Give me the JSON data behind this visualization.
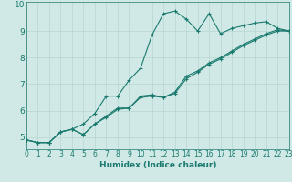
{
  "xlabel": "Humidex (Indice chaleur)",
  "x": [
    0,
    1,
    2,
    3,
    4,
    5,
    6,
    7,
    8,
    9,
    10,
    11,
    12,
    13,
    14,
    15,
    16,
    17,
    18,
    19,
    20,
    21,
    22,
    23
  ],
  "line1": [
    4.9,
    4.8,
    4.8,
    5.2,
    5.3,
    5.1,
    5.5,
    5.8,
    6.1,
    6.1,
    6.55,
    6.6,
    6.5,
    6.7,
    7.3,
    7.5,
    7.8,
    8.0,
    8.25,
    8.5,
    8.7,
    8.9,
    9.05,
    9.0
  ],
  "line2": [
    4.9,
    4.8,
    4.8,
    5.2,
    5.3,
    5.5,
    5.9,
    6.55,
    6.55,
    7.15,
    7.6,
    8.85,
    9.65,
    9.75,
    9.45,
    9.0,
    9.65,
    8.9,
    9.1,
    9.2,
    9.3,
    9.35,
    9.1,
    9.0
  ],
  "line3": [
    4.9,
    4.8,
    4.8,
    5.2,
    5.3,
    5.1,
    5.5,
    5.75,
    6.05,
    6.1,
    6.5,
    6.55,
    6.5,
    6.65,
    7.2,
    7.45,
    7.75,
    7.95,
    8.2,
    8.45,
    8.65,
    8.85,
    9.0,
    9.0
  ],
  "line_color": "#1a7a6e",
  "bg_color": "#d0e9e6",
  "grid_color": "#b8d5d1",
  "xlim": [
    0,
    23
  ],
  "ylim": [
    4.55,
    10.1
  ],
  "yticks": [
    5,
    6,
    7,
    8,
    9,
    10
  ],
  "xticks": [
    0,
    1,
    2,
    3,
    4,
    5,
    6,
    7,
    8,
    9,
    10,
    11,
    12,
    13,
    14,
    15,
    16,
    17,
    18,
    19,
    20,
    21,
    22,
    23
  ],
  "marker": "+",
  "markersize": 3,
  "linewidth": 0.8,
  "tick_fontsize": 5.5,
  "xlabel_fontsize": 6.5
}
